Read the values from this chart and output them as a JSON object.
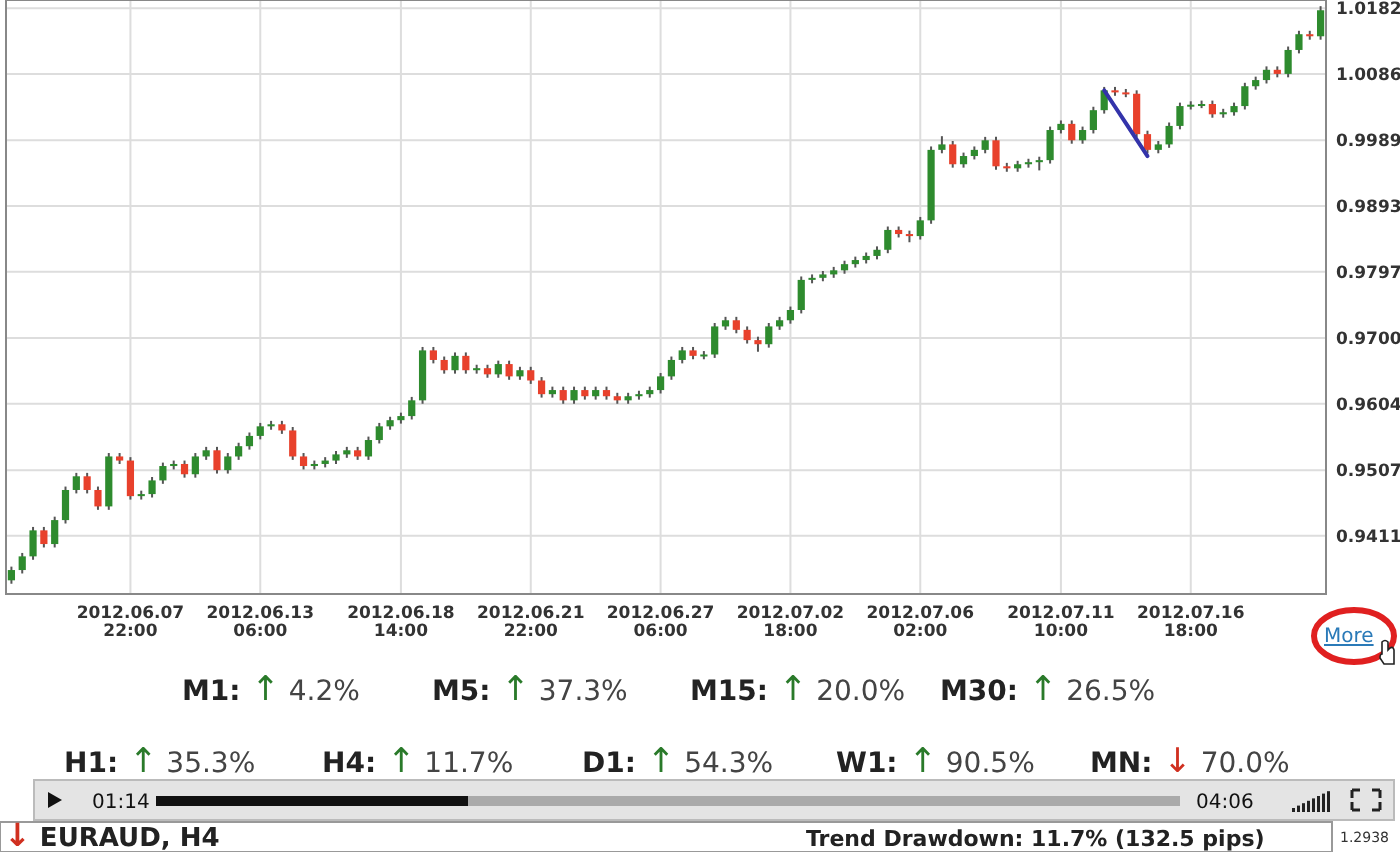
{
  "chart_data": {
    "type": "candlestick",
    "grid": true,
    "colors": [
      "#2e8b2e",
      "#2e8b2e",
      "#2e8b2e",
      "#e8412c",
      "#2e8b2e",
      "#2e8b2e",
      "#2e8b2e",
      "#e8412c",
      "#e8412c",
      "#2e8b2e",
      "#e8412c",
      "#e8412c",
      "#2e8b2e",
      "#2e8b2e",
      "#2e8b2e",
      "#2e8b2e",
      "#e8412c",
      "#2e8b2e",
      "#2e8b2e",
      "#e8412c",
      "#2e8b2e",
      "#2e8b2e",
      "#2e8b2e",
      "#2e8b2e",
      "#2e8b2e",
      "#e8412c",
      "#e8412c",
      "#e8412c",
      "#2e8b2e",
      "#2e8b2e",
      "#2e8b2e",
      "#2e8b2e",
      "#e8412c",
      "#2e8b2e",
      "#2e8b2e",
      "#2e8b2e",
      "#2e8b2e",
      "#2e8b2e",
      "#2e8b2e",
      "#e8412c",
      "#e8412c",
      "#2e8b2e",
      "#e8412c",
      "#2e8b2e",
      "#e8412c",
      "#2e8b2e",
      "#e8412c",
      "#2e8b2e",
      "#e8412c",
      "#e8412c",
      "#2e8b2e",
      "#e8412c",
      "#2e8b2e",
      "#e8412c",
      "#2e8b2e",
      "#e8412c",
      "#e8412c",
      "#2e8b2e",
      "#2e8b2e",
      "#2e8b2e",
      "#2e8b2e",
      "#2e8b2e",
      "#2e8b2e",
      "#e8412c",
      "#2e8b2e",
      "#2e8b2e",
      "#2e8b2e",
      "#e8412c",
      "#e8412c",
      "#e8412c",
      "#2e8b2e",
      "#2e8b2e",
      "#2e8b2e",
      "#2e8b2e",
      "#2e8b2e",
      "#2e8b2e",
      "#2e8b2e",
      "#2e8b2e",
      "#2e8b2e",
      "#2e8b2e",
      "#2e8b2e",
      "#2e8b2e",
      "#e8412c",
      "#e8412c",
      "#2e8b2e",
      "#2e8b2e",
      "#2e8b2e",
      "#e8412c",
      "#2e8b2e",
      "#2e8b2e",
      "#2e8b2e",
      "#e8412c",
      "#e8412c",
      "#2e8b2e",
      "#2e8b2e",
      "#2e8b2e",
      "#2e8b2e",
      "#2e8b2e",
      "#e8412c",
      "#2e8b2e",
      "#2e8b2e",
      "#2e8b2e",
      "#e8412c",
      "#e8412c",
      "#e8412c",
      "#e8412c",
      "#2e8b2e",
      "#2e8b2e",
      "#2e8b2e",
      "#2e8b2e",
      "#2e8b2e",
      "#e8412c",
      "#2e8b2e",
      "#2e8b2e",
      "#2e8b2e",
      "#2e8b2e",
      "#2e8b2e",
      "#e8412c",
      "#2e8b2e",
      "#2e8b2e",
      "#e8412c",
      "#2e8b2e"
    ],
    "ylim": [
      0.9326,
      1.0194
    ],
    "yticks": [
      0.9411,
      0.9507,
      0.9604,
      {
        "value": 0.97,
        "label": "0.9700"
      },
      0.9797,
      0.9893,
      0.9989,
      1.0086,
      1.0182
    ],
    "categories": [
      null,
      null,
      null,
      null,
      null,
      null,
      null,
      null,
      null,
      null,
      null,
      "2012.06.07 22:00",
      null,
      null,
      null,
      null,
      null,
      null,
      null,
      null,
      null,
      null,
      null,
      "2012.06.13 06:00",
      null,
      null,
      null,
      null,
      null,
      null,
      null,
      null,
      null,
      null,
      null,
      null,
      "2012.06.18 14:00",
      null,
      null,
      null,
      null,
      null,
      null,
      null,
      null,
      null,
      null,
      null,
      "2012.06.21 22:00",
      null,
      null,
      null,
      null,
      null,
      null,
      null,
      null,
      null,
      null,
      null,
      "2012.06.27 06:00",
      null,
      null,
      null,
      null,
      null,
      null,
      null,
      null,
      null,
      null,
      null,
      "2012.07.02 18:00",
      null,
      null,
      null,
      null,
      null,
      null,
      null,
      null,
      null,
      null,
      null,
      "2012.07.06 02:00",
      null,
      null,
      null,
      null,
      null,
      null,
      null,
      null,
      null,
      null,
      null,
      null,
      "2012.07.11 10:00",
      null,
      null,
      null,
      null,
      null,
      null,
      null,
      null,
      null,
      null,
      null,
      "2012.07.16 18:00",
      null,
      null,
      null,
      null,
      null,
      null,
      null,
      null,
      null,
      null,
      null,
      null
    ],
    "ohlc": [
      [
        0.9346,
        0.9366,
        0.9341,
        0.9361
      ],
      [
        0.9361,
        0.9386,
        0.9356,
        0.9381
      ],
      [
        0.9381,
        0.9424,
        0.9376,
        0.9419
      ],
      [
        0.9419,
        0.9424,
        0.9394,
        0.9399
      ],
      [
        0.9399,
        0.9439,
        0.9394,
        0.9434
      ],
      [
        0.9434,
        0.9483,
        0.9429,
        0.9478
      ],
      [
        0.9478,
        0.9503,
        0.9473,
        0.9498
      ],
      [
        0.9498,
        0.9503,
        0.9473,
        0.9478
      ],
      [
        0.9478,
        0.9483,
        0.9449,
        0.9454
      ],
      [
        0.9454,
        0.9532,
        0.9449,
        0.9527
      ],
      [
        0.9527,
        0.9532,
        0.9516,
        0.9521
      ],
      [
        0.9521,
        0.9526,
        0.9464,
        0.9469
      ],
      [
        0.9469,
        0.9477,
        0.9464,
        0.9472
      ],
      [
        0.9472,
        0.9497,
        0.9467,
        0.9492
      ],
      [
        0.9492,
        0.9518,
        0.9487,
        0.9513
      ],
      [
        0.9513,
        0.9521,
        0.9508,
        0.9516
      ],
      [
        0.9516,
        0.9521,
        0.9496,
        0.9501
      ],
      [
        0.9501,
        0.9532,
        0.9496,
        0.9527
      ],
      [
        0.9527,
        0.9541,
        0.9522,
        0.9536
      ],
      [
        0.9536,
        0.9541,
        0.9502,
        0.9507
      ],
      [
        0.9507,
        0.9532,
        0.9502,
        0.9527
      ],
      [
        0.9527,
        0.9547,
        0.9522,
        0.9542
      ],
      [
        0.9542,
        0.9562,
        0.9537,
        0.9557
      ],
      [
        0.9557,
        0.9576,
        0.9552,
        0.9571
      ],
      [
        0.9571,
        0.9579,
        0.9566,
        0.9574
      ],
      [
        0.9574,
        0.9579,
        0.956,
        0.9565
      ],
      [
        0.9565,
        0.957,
        0.9522,
        0.9527
      ],
      [
        0.9527,
        0.9532,
        0.9508,
        0.9513
      ],
      [
        0.9513,
        0.9521,
        0.9508,
        0.9516
      ],
      [
        0.9516,
        0.9526,
        0.9511,
        0.9521
      ],
      [
        0.9521,
        0.9535,
        0.9516,
        0.953
      ],
      [
        0.953,
        0.9541,
        0.9525,
        0.9536
      ],
      [
        0.9536,
        0.9541,
        0.9522,
        0.9527
      ],
      [
        0.9527,
        0.9556,
        0.9522,
        0.9551
      ],
      [
        0.9551,
        0.9576,
        0.9546,
        0.9571
      ],
      [
        0.9571,
        0.9585,
        0.9566,
        0.958
      ],
      [
        0.958,
        0.9591,
        0.9575,
        0.9586
      ],
      [
        0.9586,
        0.9614,
        0.9581,
        0.9609
      ],
      [
        0.9609,
        0.9687,
        0.9604,
        0.9682
      ],
      [
        0.9682,
        0.9687,
        0.9663,
        0.9668
      ],
      [
        0.9668,
        0.9673,
        0.9648,
        0.9653
      ],
      [
        0.9653,
        0.9679,
        0.9648,
        0.9674
      ],
      [
        0.9674,
        0.9679,
        0.9648,
        0.9653
      ],
      [
        0.9653,
        0.9661,
        0.9648,
        0.9656
      ],
      [
        0.9656,
        0.9661,
        0.9642,
        0.9647
      ],
      [
        0.9647,
        0.9667,
        0.9642,
        0.9662
      ],
      [
        0.9662,
        0.9667,
        0.9639,
        0.9644
      ],
      [
        0.9644,
        0.9658,
        0.9639,
        0.9653
      ],
      [
        0.9653,
        0.9658,
        0.9633,
        0.9638
      ],
      [
        0.9638,
        0.9643,
        0.9613,
        0.9618
      ],
      [
        0.9618,
        0.9629,
        0.9613,
        0.9624
      ],
      [
        0.9624,
        0.9629,
        0.9604,
        0.9609
      ],
      [
        0.9609,
        0.9629,
        0.9604,
        0.9624
      ],
      [
        0.9624,
        0.9629,
        0.961,
        0.9615
      ],
      [
        0.9615,
        0.9629,
        0.961,
        0.9624
      ],
      [
        0.9624,
        0.9629,
        0.961,
        0.9615
      ],
      [
        0.9615,
        0.962,
        0.9604,
        0.9609
      ],
      [
        0.9609,
        0.962,
        0.9604,
        0.9615
      ],
      [
        0.9615,
        0.9623,
        0.961,
        0.9618
      ],
      [
        0.9618,
        0.9629,
        0.9613,
        0.9624
      ],
      [
        0.9624,
        0.9649,
        0.9619,
        0.9644
      ],
      [
        0.9644,
        0.9673,
        0.9639,
        0.9668
      ],
      [
        0.9668,
        0.9687,
        0.9663,
        0.9682
      ],
      [
        0.9682,
        0.9687,
        0.9669,
        0.9674
      ],
      [
        0.9674,
        0.9681,
        0.9669,
        0.9676
      ],
      [
        0.9676,
        0.9722,
        0.9671,
        0.9717
      ],
      [
        0.9717,
        0.9731,
        0.9712,
        0.9726
      ],
      [
        0.9726,
        0.9731,
        0.9707,
        0.9712
      ],
      [
        0.9712,
        0.9717,
        0.9692,
        0.9697
      ],
      [
        0.9697,
        0.9702,
        0.968,
        0.9691
      ],
      [
        0.9691,
        0.9722,
        0.9686,
        0.9717
      ],
      [
        0.9717,
        0.9731,
        0.9712,
        0.9726
      ],
      [
        0.9726,
        0.9746,
        0.9721,
        0.9741
      ],
      [
        0.9741,
        0.979,
        0.9736,
        0.9785
      ],
      [
        0.9785,
        0.9793,
        0.978,
        0.9788
      ],
      [
        0.9788,
        0.9798,
        0.9783,
        0.9793
      ],
      [
        0.9793,
        0.9804,
        0.9788,
        0.9799
      ],
      [
        0.9799,
        0.9813,
        0.9794,
        0.9808
      ],
      [
        0.9808,
        0.9819,
        0.9803,
        0.9814
      ],
      [
        0.9814,
        0.9825,
        0.9809,
        0.982
      ],
      [
        0.982,
        0.9834,
        0.9815,
        0.9829
      ],
      [
        0.9829,
        0.9863,
        0.9824,
        0.9858
      ],
      [
        0.9858,
        0.9863,
        0.9847,
        0.9852
      ],
      [
        0.9852,
        0.9857,
        0.984,
        0.9849
      ],
      [
        0.9849,
        0.9877,
        0.9844,
        0.9872
      ],
      [
        0.9872,
        0.998,
        0.9867,
        0.9975
      ],
      [
        0.9975,
        0.9995,
        0.997,
        0.9983
      ],
      [
        0.9983,
        0.9988,
        0.9949,
        0.9954
      ],
      [
        0.9954,
        0.9971,
        0.9949,
        0.9966
      ],
      [
        0.9966,
        0.998,
        0.9961,
        0.9975
      ],
      [
        0.9975,
        0.9994,
        0.997,
        0.9989
      ],
      [
        0.9989,
        0.9994,
        0.9946,
        0.9951
      ],
      [
        0.9951,
        0.9956,
        0.9943,
        0.9948
      ],
      [
        0.9948,
        0.9959,
        0.9943,
        0.9954
      ],
      [
        0.9954,
        0.9962,
        0.9949,
        0.9957
      ],
      [
        0.9957,
        0.9965,
        0.9945,
        0.996
      ],
      [
        0.996,
        1.0009,
        0.9955,
        1.0004
      ],
      [
        1.0004,
        1.0018,
        0.9999,
        1.0013
      ],
      [
        1.0013,
        1.0018,
        0.9984,
        0.9989
      ],
      [
        0.9989,
        1.0009,
        0.9984,
        1.0004
      ],
      [
        1.0004,
        1.0038,
        0.9999,
        1.0033
      ],
      [
        1.0033,
        1.0067,
        1.0028,
        1.0062
      ],
      [
        1.0062,
        1.0067,
        1.0054,
        1.0059
      ],
      [
        1.0059,
        1.0064,
        1.0052,
        1.0057
      ],
      [
        1.0057,
        1.0062,
        0.9993,
        0.9998
      ],
      [
        0.9998,
        1.0003,
        0.997,
        0.9975
      ],
      [
        0.9975,
        0.9988,
        0.997,
        0.9983
      ],
      [
        0.9983,
        1.0015,
        0.9978,
        1.001
      ],
      [
        1.001,
        1.0044,
        1.0005,
        1.0039
      ],
      [
        1.0039,
        1.0046,
        1.0034,
        1.0041
      ],
      [
        1.0041,
        1.0047,
        1.0036,
        1.0042
      ],
      [
        1.0042,
        1.0047,
        1.0022,
        1.0027
      ],
      [
        1.0027,
        1.0035,
        1.0022,
        1.003
      ],
      [
        1.003,
        1.0044,
        1.0025,
        1.0039
      ],
      [
        1.0039,
        1.0073,
        1.0034,
        1.0068
      ],
      [
        1.0068,
        1.0082,
        1.0063,
        1.0077
      ],
      [
        1.0077,
        1.0097,
        1.0072,
        1.0092
      ],
      [
        1.0092,
        1.0097,
        1.0081,
        1.0086
      ],
      [
        1.0086,
        1.0126,
        1.0081,
        1.0121
      ],
      [
        1.0121,
        1.0149,
        1.0116,
        1.0144
      ],
      [
        1.0144,
        1.0149,
        1.0136,
        1.0141
      ],
      [
        1.0141,
        1.0185,
        1.0136,
        1.0179
      ]
    ],
    "series": [
      {
        "type": "line",
        "color": "#3333aa",
        "values": [
          null,
          null,
          null,
          null,
          null,
          null,
          null,
          null,
          null,
          null,
          null,
          null,
          null,
          null,
          null,
          null,
          null,
          null,
          null,
          null,
          null,
          null,
          null,
          null,
          null,
          null,
          null,
          null,
          null,
          null,
          null,
          null,
          null,
          null,
          null,
          null,
          null,
          null,
          null,
          null,
          null,
          null,
          null,
          null,
          null,
          null,
          null,
          null,
          null,
          null,
          null,
          null,
          null,
          null,
          null,
          null,
          null,
          null,
          null,
          null,
          null,
          null,
          null,
          null,
          null,
          null,
          null,
          null,
          null,
          null,
          null,
          null,
          null,
          null,
          null,
          null,
          null,
          null,
          null,
          null,
          null,
          null,
          null,
          null,
          null,
          null,
          null,
          null,
          null,
          null,
          null,
          null,
          null,
          null,
          null,
          null,
          null,
          null,
          null,
          null,
          null,
          1.0062,
          1.0038,
          1.0014,
          0.999,
          0.9966,
          null,
          null,
          null,
          null,
          null,
          null,
          null,
          null,
          null,
          null,
          null,
          null,
          null,
          null,
          null,
          null
        ]
      }
    ],
    "annotations": [
      "M1: ↑ 4.2%",
      "M5: ↑ 37.3%",
      "M15: ↑ 20.0%",
      "M30: ↑ 26.5%",
      "H1: ↑ 35.3%",
      "H4: ↑ 11.7%",
      "D1: ↑ 54.3%",
      "W1: ↑ 90.5%",
      "MN: ↓ 70.0%",
      "01:14",
      "04:06",
      "↓ EURAUD, H4",
      "Trend Drawdown: 11.7% (132.5 pips)",
      "More",
      "1.2938"
    ]
  }
}
